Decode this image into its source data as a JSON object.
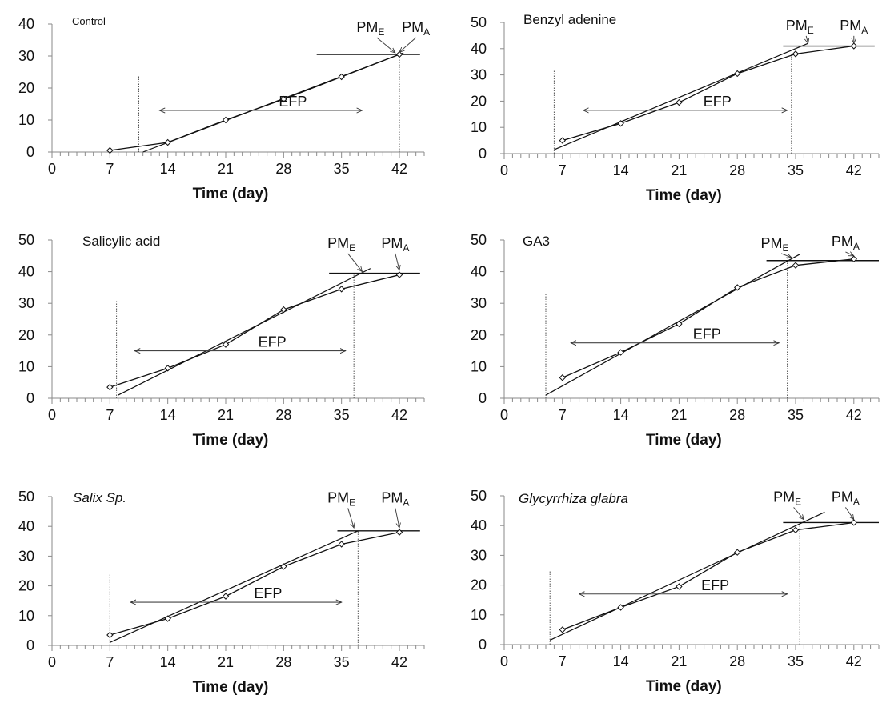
{
  "chart_data": [
    {
      "type": "line",
      "title": "Control",
      "title_style": "normal",
      "xlabel": "Time (day)",
      "ylabel": "",
      "xlim": [
        0,
        45
      ],
      "ylim": [
        0,
        40
      ],
      "xticks": [
        0,
        7,
        14,
        21,
        28,
        35,
        42
      ],
      "yticks": [
        0,
        10,
        20,
        30,
        40
      ],
      "series": [
        {
          "x": [
            7,
            14,
            21,
            28,
            35,
            42
          ],
          "values": [
            0.5,
            3,
            10,
            16.5,
            23.5,
            30.5
          ]
        }
      ],
      "fit_line": {
        "x": [
          11,
          42.5
        ],
        "y": [
          0,
          31
        ]
      },
      "plateau": {
        "x": [
          32,
          44.5
        ],
        "y": 30.5
      },
      "lower_marker": {
        "x": 10.5,
        "y_top": 24
      },
      "pm_marker": {
        "x": 42,
        "y_top": 31
      },
      "efp": {
        "label": "EFP",
        "x": [
          13,
          37.5
        ],
        "y": 13
      },
      "pm_e": {
        "text": "PM",
        "sub": "E",
        "x": 38.5,
        "y": 37.5,
        "arrow_to": [
          41.5,
          31
        ]
      },
      "pm_a": {
        "text": "PM",
        "sub": "A",
        "x": 44,
        "y": 37.5,
        "arrow_to": [
          42,
          31.2
        ]
      },
      "grid": false,
      "legend": "none"
    },
    {
      "type": "line",
      "title": "Benzyl adenine",
      "title_style": "normal",
      "xlabel": "Time (day)",
      "ylabel": "",
      "xlim": [
        0,
        45
      ],
      "ylim": [
        0,
        50
      ],
      "xticks": [
        0,
        7,
        14,
        21,
        28,
        35,
        42
      ],
      "yticks": [
        0,
        10,
        20,
        30,
        40,
        50
      ],
      "series": [
        {
          "x": [
            7,
            14,
            21,
            28,
            35,
            42
          ],
          "values": [
            5,
            11.5,
            19.5,
            30.5,
            38,
            41
          ]
        }
      ],
      "fit_line": {
        "x": [
          6,
          36.5
        ],
        "y": [
          1.5,
          42
        ]
      },
      "plateau": {
        "x": [
          33.5,
          44.5
        ],
        "y": 41
      },
      "lower_marker": {
        "x": 6,
        "y_top": 32
      },
      "pm_marker": {
        "x": 34.5,
        "y_top": 38
      },
      "efp": {
        "label": "EFP",
        "x": [
          9.5,
          34
        ],
        "y": 16.5
      },
      "pm_e": {
        "text": "PM",
        "sub": "E",
        "x": 35.5,
        "y": 47,
        "arrow_to": [
          36.5,
          42
        ]
      },
      "pm_a": {
        "text": "PM",
        "sub": "A",
        "x": 42,
        "y": 47,
        "arrow_to": [
          42,
          42
        ]
      },
      "grid": false,
      "legend": "none"
    },
    {
      "type": "line",
      "title": "Salicylic acid",
      "title_style": "normal",
      "xlabel": "Time (day)",
      "ylabel": "",
      "xlim": [
        0,
        45
      ],
      "ylim": [
        0,
        50
      ],
      "xticks": [
        0,
        7,
        14,
        21,
        28,
        35,
        42
      ],
      "yticks": [
        0,
        10,
        20,
        30,
        40,
        50
      ],
      "series": [
        {
          "x": [
            7,
            14,
            21,
            28,
            35,
            42
          ],
          "values": [
            3.5,
            9.5,
            17,
            28,
            34.5,
            39
          ]
        }
      ],
      "fit_line": {
        "x": [
          8,
          38.5
        ],
        "y": [
          1,
          41
        ]
      },
      "plateau": {
        "x": [
          33.5,
          44.5
        ],
        "y": 39.5
      },
      "lower_marker": {
        "x": 7.8,
        "y_top": 31
      },
      "pm_marker": {
        "x": 36.5,
        "y_top": 39.5
      },
      "efp": {
        "label": "EFP",
        "x": [
          10,
          35.5
        ],
        "y": 15
      },
      "pm_e": {
        "text": "PM",
        "sub": "E",
        "x": 35,
        "y": 47.5,
        "arrow_to": [
          37.5,
          40
        ]
      },
      "pm_a": {
        "text": "PM",
        "sub": "A",
        "x": 41.5,
        "y": 47.5,
        "arrow_to": [
          42,
          40.5
        ]
      },
      "grid": false,
      "legend": "none"
    },
    {
      "type": "line",
      "title": "GA3",
      "title_style": "normal",
      "xlabel": "Time (day)",
      "ylabel": "",
      "xlim": [
        0,
        45
      ],
      "ylim": [
        0,
        50
      ],
      "xticks": [
        0,
        7,
        14,
        21,
        28,
        35,
        42
      ],
      "yticks": [
        0,
        10,
        20,
        30,
        40,
        50
      ],
      "series": [
        {
          "x": [
            7,
            14,
            21,
            28,
            35,
            42
          ],
          "values": [
            6.5,
            14.5,
            23.5,
            35,
            42,
            44
          ]
        }
      ],
      "fit_line": {
        "x": [
          5,
          35.5
        ],
        "y": [
          1,
          45.5
        ]
      },
      "plateau": {
        "x": [
          31.5,
          45
        ],
        "y": 43.5
      },
      "lower_marker": {
        "x": 5,
        "y_top": 33
      },
      "pm_marker": {
        "x": 34,
        "y_top": 44
      },
      "efp": {
        "label": "EFP",
        "x": [
          8,
          33
        ],
        "y": 17.5
      },
      "pm_e": {
        "text": "PM",
        "sub": "E",
        "x": 32.5,
        "y": 47.5,
        "arrow_to": [
          34.5,
          44.5
        ]
      },
      "pm_a": {
        "text": "PM",
        "sub": "A",
        "x": 41,
        "y": 48,
        "arrow_to": [
          42,
          45
        ]
      },
      "grid": false,
      "legend": "none"
    },
    {
      "type": "line",
      "title": "Salix Sp.",
      "title_style": "italic",
      "xlabel": "Time (day)",
      "ylabel": "",
      "xlim": [
        0,
        45
      ],
      "ylim": [
        0,
        50
      ],
      "xticks": [
        0,
        7,
        14,
        21,
        28,
        35,
        42
      ],
      "yticks": [
        0,
        10,
        20,
        30,
        40,
        50
      ],
      "series": [
        {
          "x": [
            7,
            14,
            21,
            28,
            35,
            42
          ],
          "values": [
            3.5,
            9,
            16.5,
            26.5,
            34,
            38
          ]
        }
      ],
      "fit_line": {
        "x": [
          7,
          37
        ],
        "y": [
          1,
          38.5
        ]
      },
      "plateau": {
        "x": [
          34.5,
          44.5
        ],
        "y": 38.5
      },
      "lower_marker": {
        "x": 7,
        "y_top": 24
      },
      "pm_marker": {
        "x": 37,
        "y_top": 38.5
      },
      "efp": {
        "label": "EFP",
        "x": [
          9.5,
          35
        ],
        "y": 14.5
      },
      "pm_e": {
        "text": "PM",
        "sub": "E",
        "x": 35,
        "y": 48,
        "arrow_to": [
          36.5,
          39.5
        ]
      },
      "pm_a": {
        "text": "PM",
        "sub": "A",
        "x": 41.5,
        "y": 48,
        "arrow_to": [
          42,
          39.5
        ]
      },
      "grid": false,
      "legend": "none"
    },
    {
      "type": "line",
      "title": "Glycyrrhiza glabra",
      "title_style": "italic",
      "xlabel": "Time (day)",
      "ylabel": "",
      "xlim": [
        0,
        45
      ],
      "ylim": [
        0,
        50
      ],
      "xticks": [
        0,
        7,
        14,
        21,
        28,
        35,
        42
      ],
      "yticks": [
        0,
        10,
        20,
        30,
        40,
        50
      ],
      "series": [
        {
          "x": [
            7,
            14,
            21,
            28,
            35,
            42
          ],
          "values": [
            5,
            12.5,
            19.5,
            31,
            38.5,
            41
          ]
        }
      ],
      "fit_line": {
        "x": [
          5.5,
          38.5
        ],
        "y": [
          1.5,
          44.5
        ]
      },
      "plateau": {
        "x": [
          33.5,
          45
        ],
        "y": 41
      },
      "lower_marker": {
        "x": 5.5,
        "y_top": 25
      },
      "pm_marker": {
        "x": 35.5,
        "y_top": 40
      },
      "efp": {
        "label": "EFP",
        "x": [
          9,
          34
        ],
        "y": 17
      },
      "pm_e": {
        "text": "PM",
        "sub": "E",
        "x": 34,
        "y": 48,
        "arrow_to": [
          36,
          42
        ]
      },
      "pm_a": {
        "text": "PM",
        "sub": "A",
        "x": 41,
        "y": 48,
        "arrow_to": [
          42,
          42
        ]
      },
      "grid": false,
      "legend": "none"
    }
  ]
}
